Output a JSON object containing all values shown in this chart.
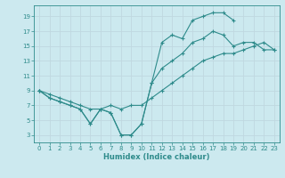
{
  "line1": {
    "x": [
      0,
      1,
      2,
      3,
      4,
      5,
      6,
      7,
      8,
      9,
      10,
      11,
      12,
      13,
      14,
      15,
      16,
      17,
      18,
      19
    ],
    "y": [
      9,
      8,
      7.5,
      7,
      6.5,
      4.5,
      6.5,
      6,
      3,
      3,
      4.5,
      10,
      15.5,
      16.5,
      16,
      18.5,
      19,
      19.5,
      19.5,
      18.5
    ]
  },
  "line2": {
    "x": [
      0,
      1,
      2,
      3,
      4,
      5,
      6,
      7,
      8,
      9,
      10,
      11,
      12,
      13,
      14,
      15,
      16,
      17,
      18,
      19,
      20,
      21,
      22,
      23
    ],
    "y": [
      9,
      8,
      7.5,
      7,
      6.5,
      4.5,
      6.5,
      6,
      3,
      3,
      4.5,
      10,
      12,
      13,
      14,
      15.5,
      16,
      17,
      16.5,
      15,
      15.5,
      15.5,
      14.5,
      14.5
    ]
  },
  "line3": {
    "x": [
      0,
      1,
      2,
      3,
      4,
      5,
      6,
      7,
      8,
      9,
      10,
      11,
      12,
      13,
      14,
      15,
      16,
      17,
      18,
      19,
      20,
      21,
      22,
      23
    ],
    "y": [
      9,
      8.5,
      8,
      7.5,
      7,
      6.5,
      6.5,
      7,
      6.5,
      7,
      7,
      8,
      9,
      10,
      11,
      12,
      13,
      13.5,
      14,
      14,
      14.5,
      15,
      15.5,
      14.5
    ]
  },
  "color": "#2e8b8b",
  "bg_color": "#cce9ef",
  "grid_color": "#c0d8e0",
  "xlabel": "Humidex (Indice chaleur)",
  "xlim": [
    -0.5,
    23.5
  ],
  "ylim": [
    2,
    20.5
  ],
  "xticks": [
    0,
    1,
    2,
    3,
    4,
    5,
    6,
    7,
    8,
    9,
    10,
    11,
    12,
    13,
    14,
    15,
    16,
    17,
    18,
    19,
    20,
    21,
    22,
    23
  ],
  "yticks": [
    3,
    5,
    7,
    9,
    11,
    13,
    15,
    17,
    19
  ],
  "marker": "+",
  "markersize": 3,
  "linewidth": 0.8,
  "xlabel_fontsize": 6.0,
  "tick_fontsize": 5.0
}
